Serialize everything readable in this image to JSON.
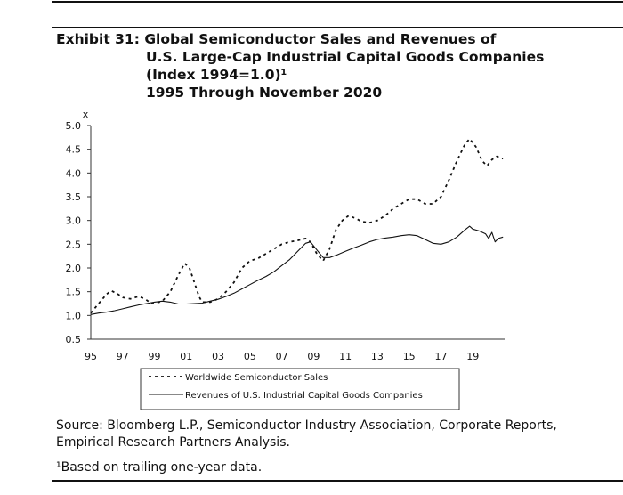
{
  "title": {
    "exhibit": "Exhibit 31:",
    "line1": "Global Semiconductor Sales and Revenues of",
    "line2": "U.S. Large-Cap Industrial Capital Goods Companies",
    "line3": "(Index 1994=1.0)¹",
    "line4": "1995 Through November 2020"
  },
  "source": "Source: Bloomberg L.P., Semiconductor Industry Association, Corporate Reports, Empirical Research Partners Analysis.",
  "footnote": "¹Based on trailing one-year data.",
  "chart_data": {
    "type": "line",
    "ylabel": "x",
    "ylim": [
      0.5,
      5.0
    ],
    "yticks": [
      0.5,
      1.0,
      1.5,
      2.0,
      2.5,
      3.0,
      3.5,
      4.0,
      4.5,
      5.0
    ],
    "ytick_labels": [
      "0.5",
      "1.0",
      "1.5",
      "2.0",
      "2.5",
      "3.0",
      "3.5",
      "4.0",
      "4.5",
      "5.0"
    ],
    "xlim": [
      1995,
      2021
    ],
    "xticks": [
      1995,
      1997,
      1999,
      2001,
      2003,
      2005,
      2007,
      2009,
      2011,
      2013,
      2015,
      2017,
      2019
    ],
    "xtick_labels": [
      "95",
      "97",
      "99",
      "01",
      "03",
      "05",
      "07",
      "09",
      "11",
      "13",
      "15",
      "17",
      "19"
    ],
    "grid": false,
    "legend_position": "bottom",
    "series": [
      {
        "name": "Worldwide Semiconductor Sales",
        "style": "dashed",
        "color": "#111111",
        "points": [
          [
            1995.0,
            1.05
          ],
          [
            1995.5,
            1.25
          ],
          [
            1996.0,
            1.45
          ],
          [
            1996.3,
            1.52
          ],
          [
            1996.7,
            1.45
          ],
          [
            1997.0,
            1.38
          ],
          [
            1997.5,
            1.35
          ],
          [
            1998.0,
            1.4
          ],
          [
            1998.4,
            1.35
          ],
          [
            1998.8,
            1.25
          ],
          [
            1999.0,
            1.25
          ],
          [
            1999.5,
            1.3
          ],
          [
            2000.0,
            1.5
          ],
          [
            2000.5,
            1.85
          ],
          [
            2000.9,
            2.1
          ],
          [
            2001.2,
            2.0
          ],
          [
            2001.5,
            1.7
          ],
          [
            2001.8,
            1.4
          ],
          [
            2002.0,
            1.28
          ],
          [
            2002.5,
            1.28
          ],
          [
            2003.0,
            1.35
          ],
          [
            2003.5,
            1.5
          ],
          [
            2004.0,
            1.7
          ],
          [
            2004.5,
            2.0
          ],
          [
            2005.0,
            2.15
          ],
          [
            2005.5,
            2.2
          ],
          [
            2006.0,
            2.3
          ],
          [
            2006.5,
            2.4
          ],
          [
            2007.0,
            2.5
          ],
          [
            2007.5,
            2.55
          ],
          [
            2008.0,
            2.58
          ],
          [
            2008.5,
            2.62
          ],
          [
            2008.8,
            2.55
          ],
          [
            2009.2,
            2.3
          ],
          [
            2009.6,
            2.15
          ],
          [
            2010.0,
            2.4
          ],
          [
            2010.4,
            2.8
          ],
          [
            2010.8,
            3.0
          ],
          [
            2011.2,
            3.1
          ],
          [
            2011.6,
            3.05
          ],
          [
            2012.0,
            2.98
          ],
          [
            2012.5,
            2.95
          ],
          [
            2013.0,
            3.0
          ],
          [
            2013.5,
            3.1
          ],
          [
            2014.0,
            3.25
          ],
          [
            2014.5,
            3.35
          ],
          [
            2015.0,
            3.45
          ],
          [
            2015.5,
            3.45
          ],
          [
            2016.0,
            3.35
          ],
          [
            2016.5,
            3.35
          ],
          [
            2017.0,
            3.5
          ],
          [
            2017.5,
            3.85
          ],
          [
            2018.0,
            4.25
          ],
          [
            2018.5,
            4.6
          ],
          [
            2018.8,
            4.72
          ],
          [
            2019.2,
            4.55
          ],
          [
            2019.6,
            4.25
          ],
          [
            2019.9,
            4.15
          ],
          [
            2020.2,
            4.28
          ],
          [
            2020.5,
            4.35
          ],
          [
            2020.9,
            4.3
          ]
        ]
      },
      {
        "name": "Revenues of U.S. Industrial Capital Goods Companies",
        "style": "solid",
        "color": "#111111",
        "points": [
          [
            1995.0,
            1.02
          ],
          [
            1995.5,
            1.05
          ],
          [
            1996.0,
            1.07
          ],
          [
            1996.5,
            1.1
          ],
          [
            1997.0,
            1.14
          ],
          [
            1997.5,
            1.18
          ],
          [
            1998.0,
            1.22
          ],
          [
            1998.5,
            1.25
          ],
          [
            1999.0,
            1.28
          ],
          [
            1999.5,
            1.3
          ],
          [
            2000.0,
            1.28
          ],
          [
            2000.5,
            1.24
          ],
          [
            2001.0,
            1.24
          ],
          [
            2001.5,
            1.25
          ],
          [
            2002.0,
            1.26
          ],
          [
            2002.5,
            1.3
          ],
          [
            2003.0,
            1.34
          ],
          [
            2003.5,
            1.4
          ],
          [
            2004.0,
            1.47
          ],
          [
            2004.5,
            1.56
          ],
          [
            2005.0,
            1.65
          ],
          [
            2005.5,
            1.74
          ],
          [
            2006.0,
            1.82
          ],
          [
            2006.5,
            1.92
          ],
          [
            2007.0,
            2.05
          ],
          [
            2007.5,
            2.18
          ],
          [
            2008.0,
            2.35
          ],
          [
            2008.5,
            2.52
          ],
          [
            2008.8,
            2.55
          ],
          [
            2009.2,
            2.38
          ],
          [
            2009.6,
            2.22
          ],
          [
            2010.0,
            2.22
          ],
          [
            2010.5,
            2.28
          ],
          [
            2011.0,
            2.35
          ],
          [
            2011.5,
            2.42
          ],
          [
            2012.0,
            2.48
          ],
          [
            2012.5,
            2.55
          ],
          [
            2013.0,
            2.6
          ],
          [
            2013.5,
            2.63
          ],
          [
            2014.0,
            2.65
          ],
          [
            2014.5,
            2.68
          ],
          [
            2015.0,
            2.7
          ],
          [
            2015.5,
            2.68
          ],
          [
            2016.0,
            2.6
          ],
          [
            2016.5,
            2.52
          ],
          [
            2017.0,
            2.5
          ],
          [
            2017.5,
            2.55
          ],
          [
            2018.0,
            2.65
          ],
          [
            2018.5,
            2.8
          ],
          [
            2018.8,
            2.88
          ],
          [
            2019.0,
            2.82
          ],
          [
            2019.4,
            2.78
          ],
          [
            2019.8,
            2.72
          ],
          [
            2020.0,
            2.62
          ],
          [
            2020.2,
            2.75
          ],
          [
            2020.4,
            2.55
          ],
          [
            2020.6,
            2.62
          ],
          [
            2020.9,
            2.65
          ]
        ]
      }
    ]
  }
}
